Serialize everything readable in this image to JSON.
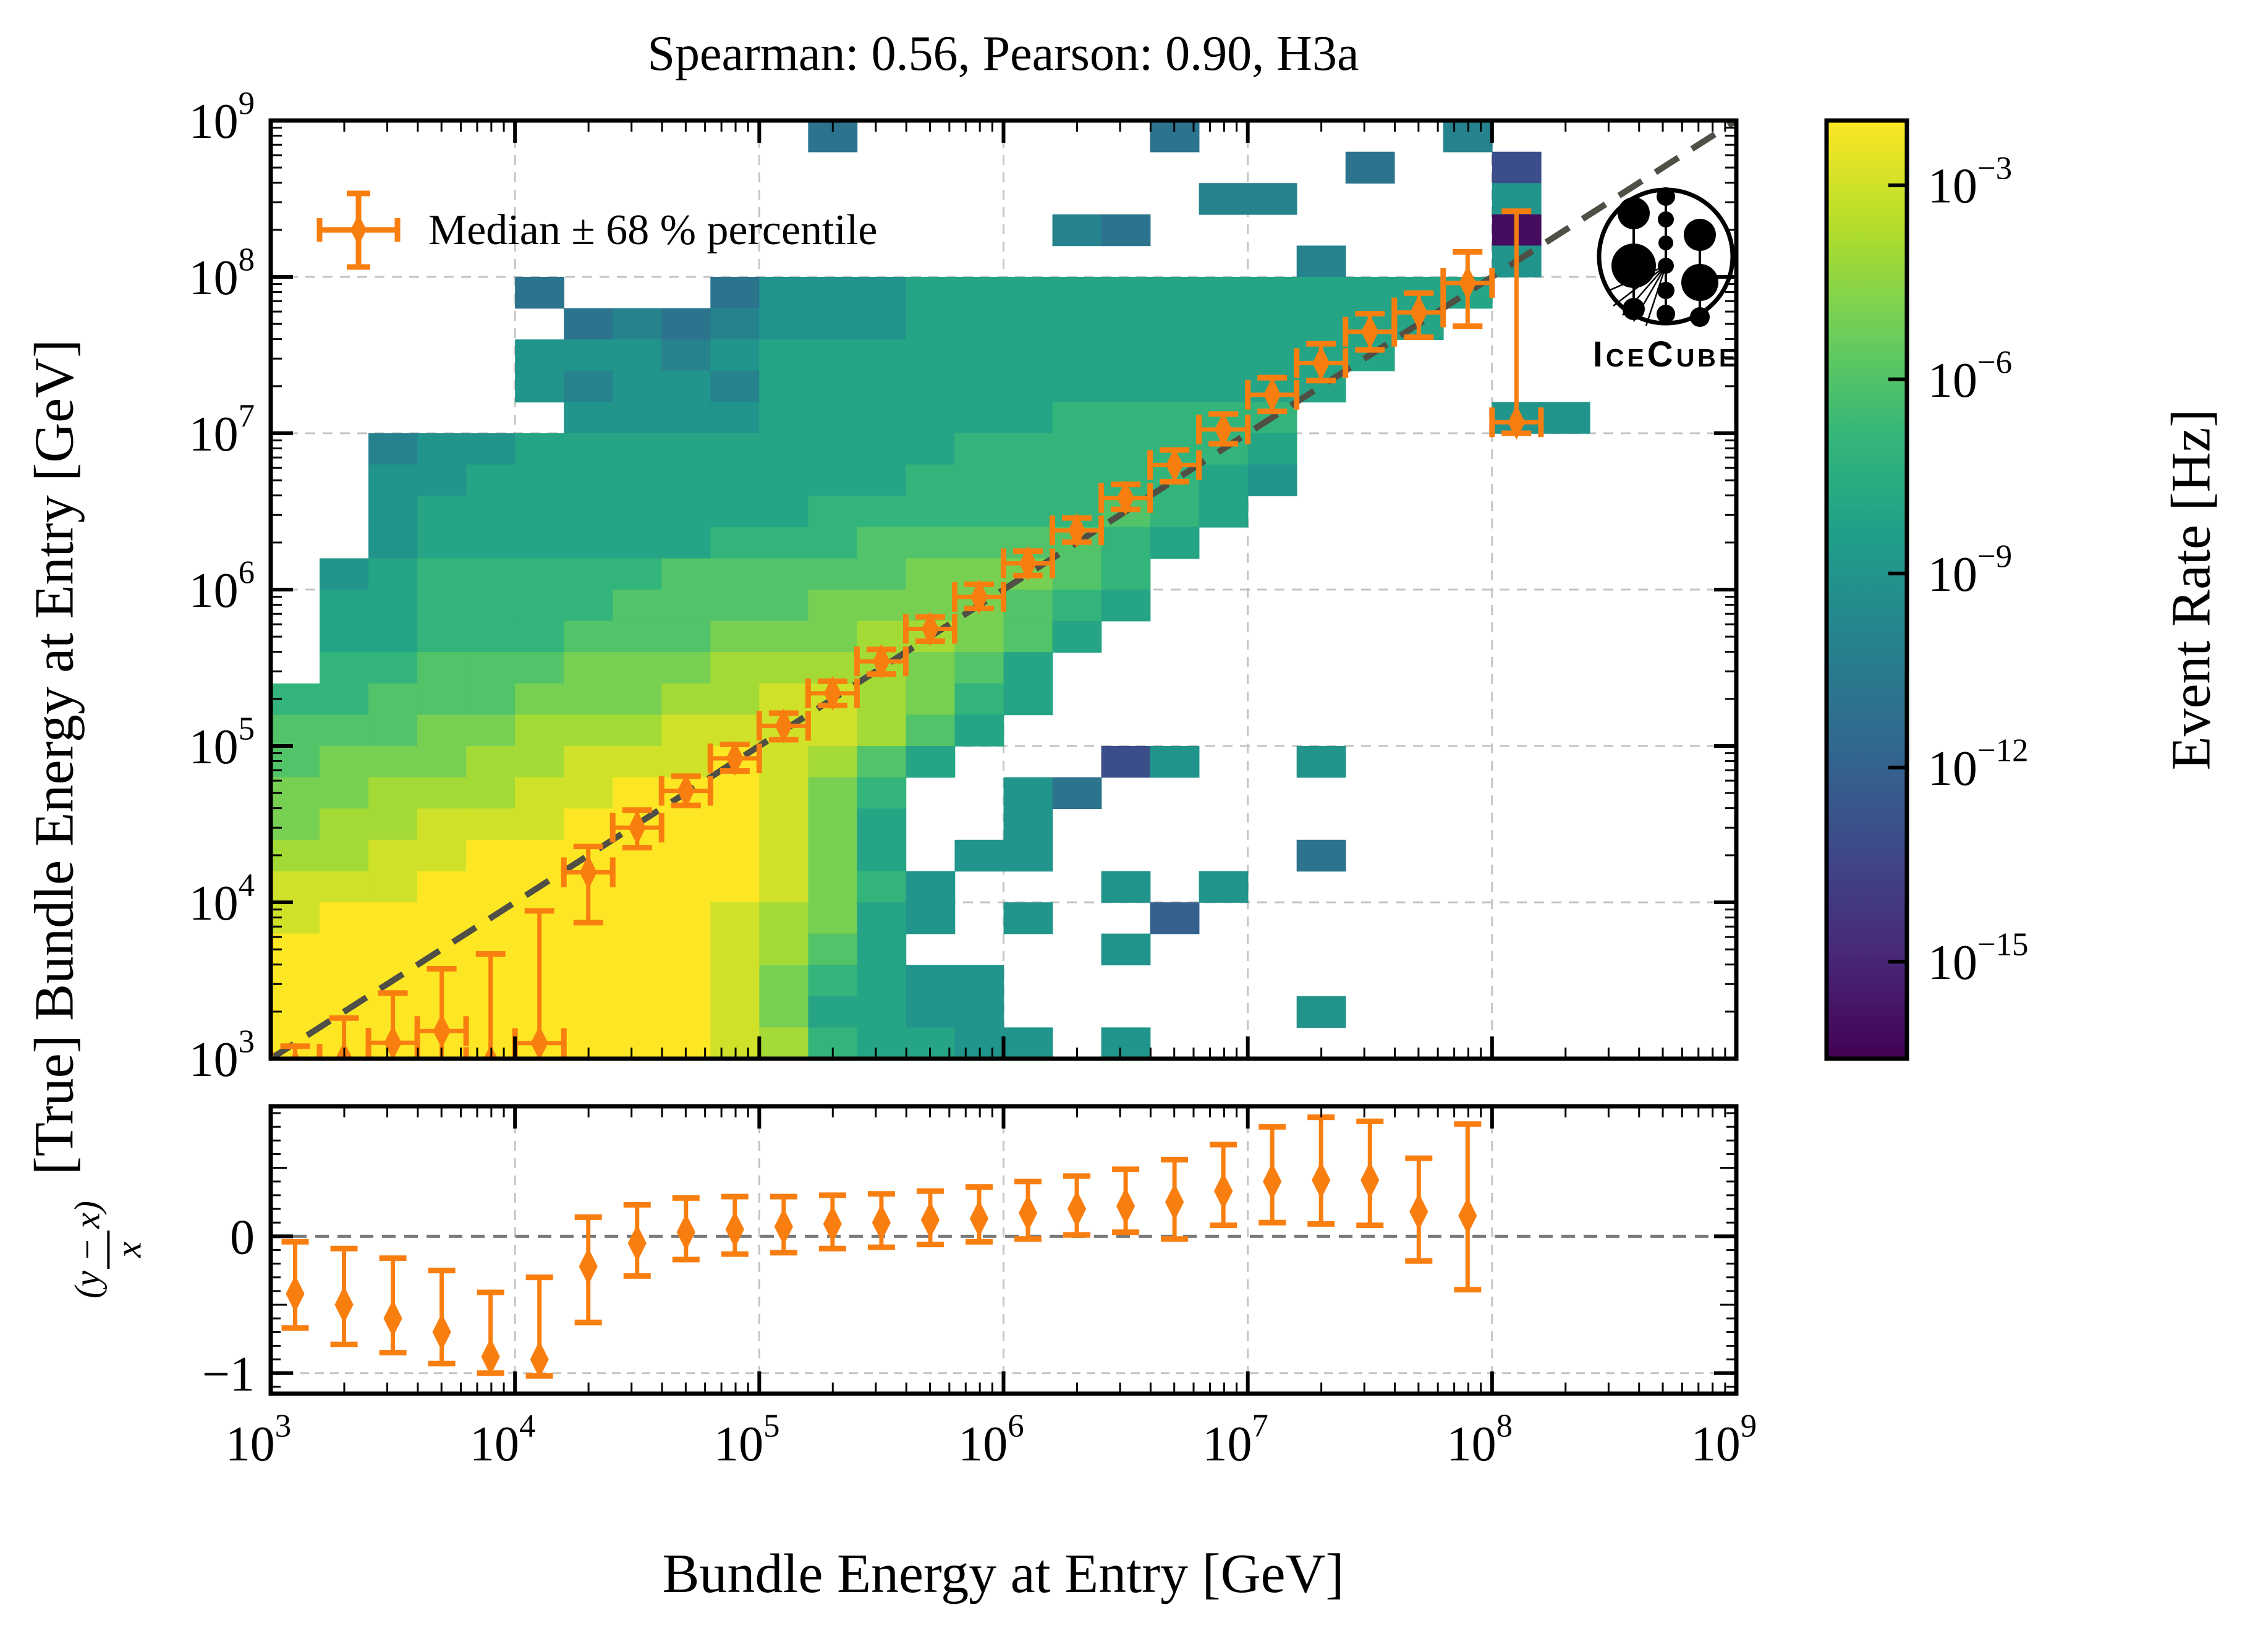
{
  "title": "Spearman: 0.56, Pearson: 0.90, H3a",
  "legend": {
    "label": "Median ± 68 % percentile"
  },
  "logo": {
    "text": "IceCube"
  },
  "colors": {
    "orange": "#f97e10",
    "diagonal": "#4f4f45",
    "grid": "#c4c4c4",
    "zero_line": "#7a7a7a",
    "spine": "#000000",
    "background": "#ffffff"
  },
  "chart_data": {
    "type": "heatmap",
    "title": "Spearman: 0.56, Pearson: 0.90, H3a",
    "xlabel": "Bundle Energy at Entry [GeV]",
    "ylabel": "[True] Bundle Energy at Entry [GeV]",
    "ratio_ylabel_numerator": "(y − x)",
    "ratio_ylabel_denominator": "x",
    "colorbar_label": "Event Rate [Hz]",
    "x_log10_range": [
      3,
      9
    ],
    "y_log10_range": [
      3,
      9
    ],
    "x_ticks_log10": [
      3,
      4,
      5,
      6,
      7,
      8,
      9
    ],
    "y_ticks_log10": [
      3,
      4,
      5,
      6,
      7,
      8,
      9
    ],
    "grid_decades_x": [
      4,
      5,
      6,
      7,
      8
    ],
    "grid_decades_y": [
      4,
      5,
      6,
      7,
      8
    ],
    "ratio_ylim": [
      -1.15,
      0.95
    ],
    "ratio_yticks": [
      0,
      -1
    ],
    "colorbar_ticks_log10": [
      -3,
      -6,
      -9,
      -12,
      -15
    ],
    "color_scale": {
      "vmin_log10": -16.5,
      "vmax_log10": -2,
      "viridis_stops": [
        "#440154",
        "#482878",
        "#3e4989",
        "#31688e",
        "#26828e",
        "#1f9e89",
        "#35b779",
        "#6ece58",
        "#b5de2b",
        "#fde725"
      ]
    },
    "heatmap": {
      "bins_per_decade": 5,
      "level_encoding": "char n in '0'..'9','A'..'E' means log10(rate[Hz]) = -2 - n ; '.' = empty bin",
      "rows_top_to_bottom": [
        "...........9......9.....8.....",
        "......................9..B....",
        "...................88....7....",
        "................89.......E....",
        ".....................8...7....",
        ".....9...9777666666666666.....",
        "......989877766666666666......",
        ".....777876666666666666.......",
        ".....78778666666666666........",
        "......777766666655555....77...",
        "..8776666666665555556.........",
        "..7766666666655555567.........",
        "..766666666555555456..........",
        "..76666665554444456...........",
        ".76555554444433345............",
        ".66555544443333456............",
        ".6655544433322346.............",
        ".554443332222346..............",
        "5544433322112356..............",
        "444332221111246...............",
        "43332211101246...B7..7........",
        "3322211000135..79.............",
        "3221110000136..7..............",
        "2211000000136.77.....9........",
        "11100000001357...7.7..........",
        "10000000012367.7..A...........",
        "0000000001246....7............",
        "000000000135677...............",
        "000000000136677......7........",
        "0000000001256677.7............"
      ]
    },
    "median_series": {
      "label": "Median ± 68 % percentile",
      "points_log10_x_y_ylo_yhi": [
        [
          3.1,
          2.95,
          2.62,
          3.08
        ],
        [
          3.3,
          2.999,
          2.62,
          3.26
        ],
        [
          3.5,
          3.102,
          2.68,
          3.42
        ],
        [
          3.7,
          3.177,
          2.55,
          3.575
        ],
        [
          3.9,
          2.979,
          1.5,
          3.67
        ],
        [
          4.1,
          3.1,
          1.5,
          3.945
        ],
        [
          4.3,
          4.192,
          3.87,
          4.357
        ],
        [
          4.5,
          4.478,
          4.35,
          4.59
        ],
        [
          4.7,
          4.713,
          4.62,
          4.807
        ],
        [
          4.9,
          4.921,
          4.84,
          5.01
        ],
        [
          5.1,
          5.129,
          5.04,
          5.21
        ],
        [
          5.3,
          5.337,
          5.259,
          5.414
        ],
        [
          5.5,
          5.541,
          5.46,
          5.617
        ],
        [
          5.7,
          5.749,
          5.67,
          5.825
        ],
        [
          5.9,
          5.953,
          5.88,
          6.034
        ],
        [
          6.1,
          6.168,
          6.09,
          6.246
        ],
        [
          6.3,
          6.379,
          6.304,
          6.458
        ],
        [
          6.5,
          6.586,
          6.513,
          6.673
        ],
        [
          6.7,
          6.797,
          6.69,
          6.893
        ],
        [
          6.9,
          7.024,
          6.933,
          7.123
        ],
        [
          7.1,
          7.246,
          7.14,
          7.355
        ],
        [
          7.3,
          7.449,
          7.337,
          7.572
        ],
        [
          7.5,
          7.649,
          7.533,
          7.765
        ],
        [
          7.7,
          7.772,
          7.614,
          7.896
        ],
        [
          7.9,
          7.961,
          7.685,
          8.16
        ],
        [
          8.1,
          7.07,
          7.0,
          8.42
        ]
      ],
      "x_bin_halfwidth_log10": 0.1
    },
    "ratio_series": {
      "points_log10x_r_rlo_rhi": [
        [
          3.1,
          -0.42,
          -0.67,
          -0.04
        ],
        [
          3.3,
          -0.5,
          -0.79,
          -0.09
        ],
        [
          3.5,
          -0.6,
          -0.85,
          -0.16
        ],
        [
          3.7,
          -0.7,
          -0.93,
          -0.25
        ],
        [
          3.9,
          -0.88,
          -1.0,
          -0.41
        ],
        [
          4.1,
          -0.9,
          -1.02,
          -0.3
        ],
        [
          4.3,
          -0.22,
          -0.63,
          0.14
        ],
        [
          4.5,
          -0.05,
          -0.29,
          0.23
        ],
        [
          4.7,
          0.03,
          -0.17,
          0.28
        ],
        [
          4.9,
          0.05,
          -0.13,
          0.29
        ],
        [
          5.1,
          0.07,
          -0.12,
          0.29
        ],
        [
          5.3,
          0.09,
          -0.09,
          0.3
        ],
        [
          5.5,
          0.1,
          -0.08,
          0.31
        ],
        [
          5.7,
          0.12,
          -0.06,
          0.33
        ],
        [
          5.9,
          0.13,
          -0.04,
          0.36
        ],
        [
          6.1,
          0.17,
          -0.02,
          0.4
        ],
        [
          6.3,
          0.2,
          0.01,
          0.44
        ],
        [
          6.5,
          0.22,
          0.03,
          0.49
        ],
        [
          6.7,
          0.25,
          -0.02,
          0.56
        ],
        [
          6.9,
          0.33,
          0.08,
          0.67
        ],
        [
          7.1,
          0.4,
          0.1,
          0.8
        ],
        [
          7.3,
          0.41,
          0.09,
          0.87
        ],
        [
          7.5,
          0.41,
          0.08,
          0.84
        ],
        [
          7.7,
          0.18,
          -0.18,
          0.57
        ],
        [
          7.9,
          0.15,
          -0.39,
          0.82
        ]
      ]
    },
    "diagonal_line": {
      "from_log10": [
        3,
        3
      ],
      "to_log10": [
        9,
        9
      ],
      "style": "dashed"
    }
  }
}
